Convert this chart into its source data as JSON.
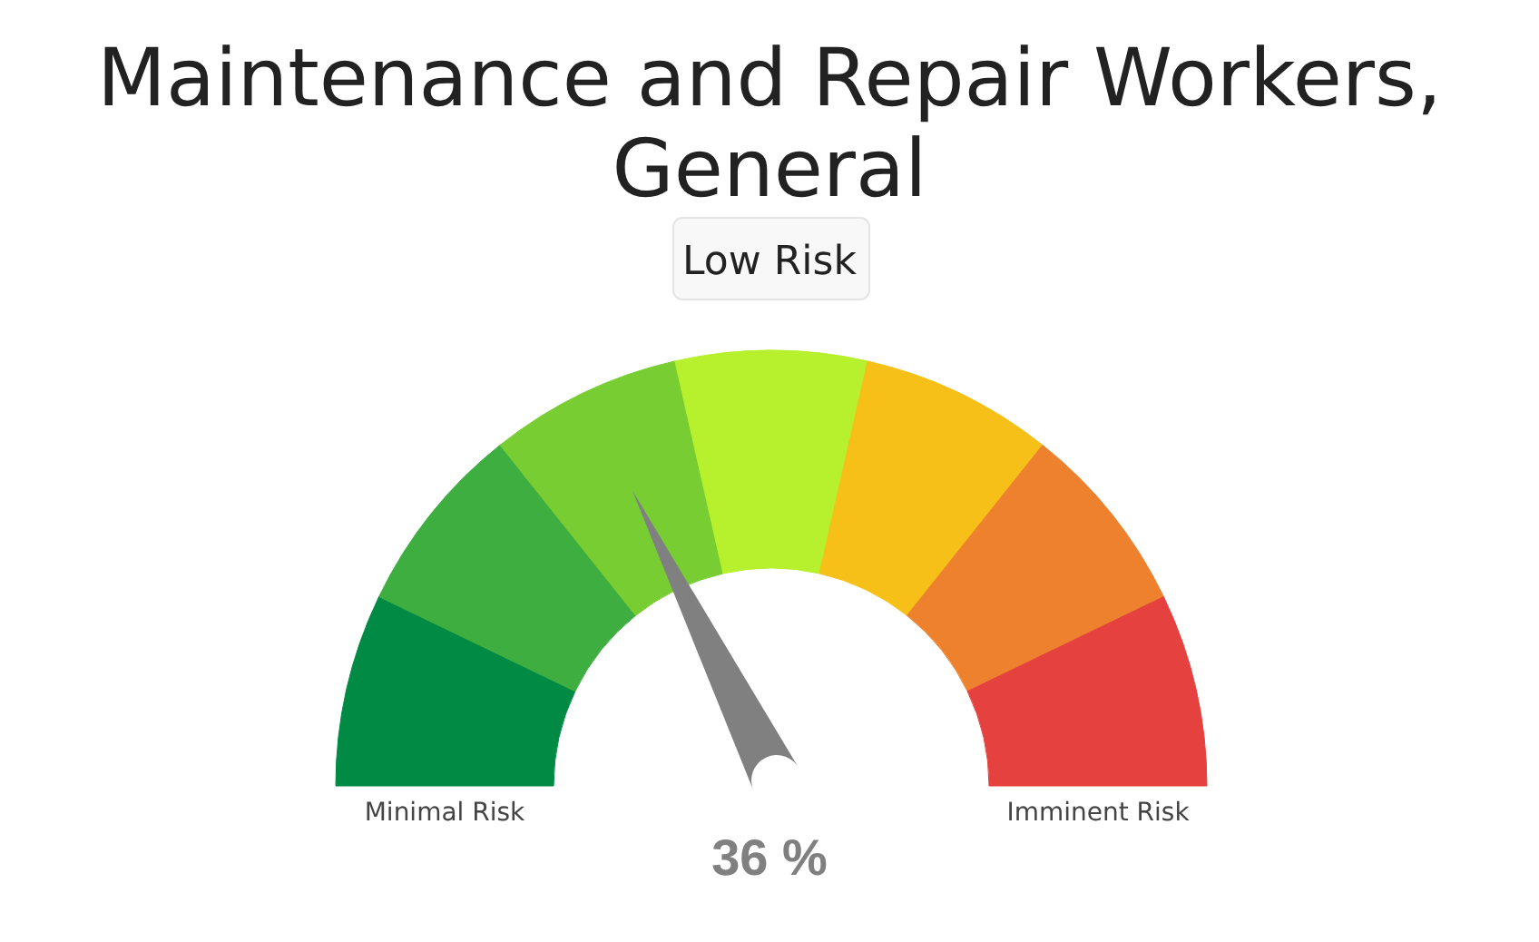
{
  "chart_data": {
    "type": "donut",
    "title": "Maintenance and Repair Workers, General",
    "subtitle": "Low Risk",
    "categories": [
      null,
      null,
      null,
      null,
      null,
      null,
      null
    ],
    "values": [
      14.3,
      14.3,
      14.3,
      14.2,
      14.3,
      14.3,
      14.3
    ],
    "colors": [
      "#008a44",
      "#3dae3f",
      "#78cd32",
      "#b7f02c",
      "#f6c018",
      "#ee812d",
      "#e5423f"
    ],
    "annotations": [
      "Minimal Risk",
      "Imminent Risk",
      "36 %"
    ]
  }
}
